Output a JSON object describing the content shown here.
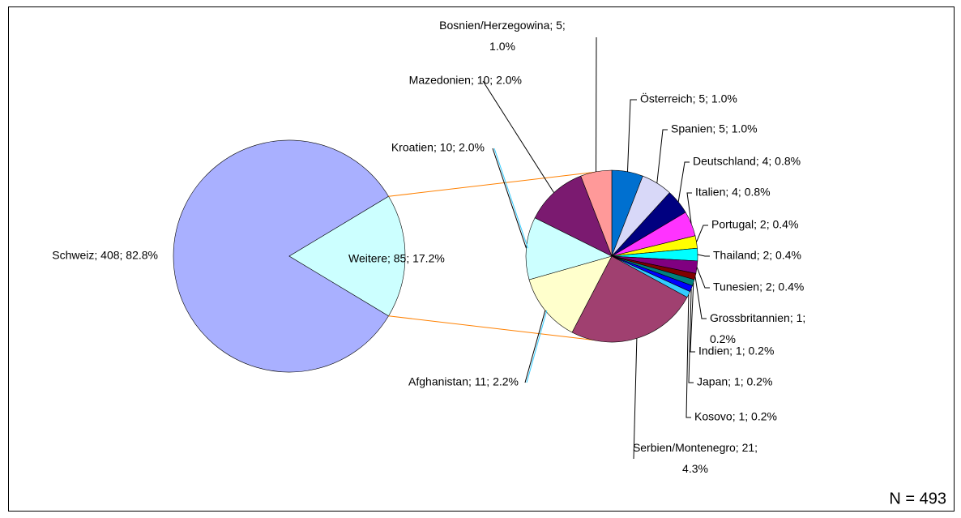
{
  "chart_data": [
    {
      "type": "pie",
      "value_labels": [
        "Schweiz; 408; 82.8%",
        "Weitere; 85; 17.2%"
      ],
      "values": [
        408,
        85
      ],
      "colors": [
        "#a9b0ff",
        "#ccffff"
      ]
    },
    {
      "type": "pie",
      "value_labels": [
        "Österreich; 5; 1.0%",
        "Spanien; 5; 1.0%",
        "Deutschland; 4; 0.8%",
        "Italien; 4; 0.8%",
        "Portugal; 2; 0.4%",
        "Thailand; 2; 0.4%",
        "Tunesien; 2; 0.4%",
        "Grossbritannien; 1; 0.2%",
        "Indien; 1; 0.2%",
        "Japan; 1; 0.2%",
        "Kosovo; 1; 0.2%",
        "Serbien/Montenegro; 21; 4.3%",
        "Afghanistan; 11; 2.2%",
        "Kroatien; 10; 2.0%",
        "Mazedonien; 10; 2.0%",
        "Bosnien/Herzegowina; 5; 1.0%"
      ],
      "values": [
        5,
        5,
        4,
        4,
        2,
        2,
        2,
        1,
        1,
        1,
        1,
        21,
        11,
        10,
        10,
        5
      ],
      "colors": [
        "#0070d0",
        "#d8d8f8",
        "#000080",
        "#ff33ff",
        "#ffff00",
        "#00ffff",
        "#800080",
        "#800000",
        "#008080",
        "#0000ff",
        "#33ccff",
        "#a04070",
        "#ffffcc",
        "#ccffff",
        "#7b1a70",
        "#ff9999"
      ]
    }
  ],
  "note": "N = 493"
}
